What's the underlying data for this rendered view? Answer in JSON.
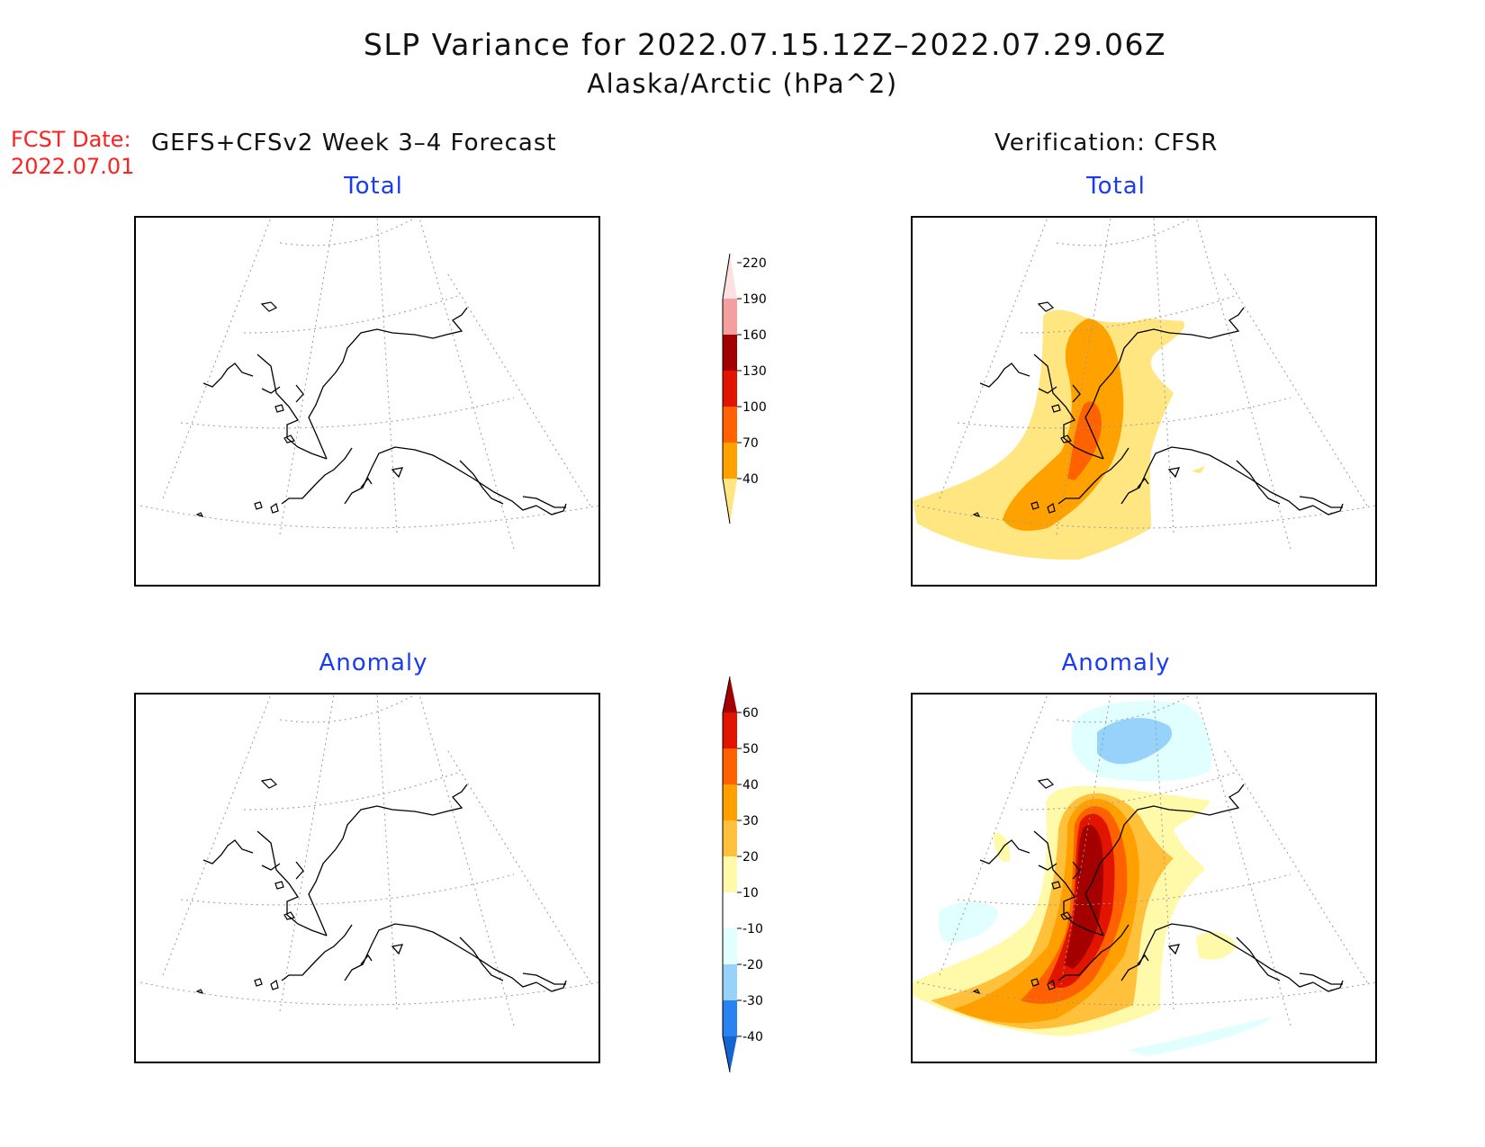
{
  "header": {
    "title_line1": "SLP Variance for 2022.07.15.12Z–2022.07.29.06Z",
    "title_line2": "Alaska/Arctic (hPa^2)",
    "fcst_label": "FCST Date:",
    "fcst_date": "2022.07.01",
    "left_header": "GEFS+CFSv2 Week 3–4 Forecast",
    "right_header": "Verification: CFSR"
  },
  "panels": {
    "top_left_title": "Total",
    "top_right_title": "Total",
    "bottom_left_title": "Anomaly",
    "bottom_right_title": "Anomaly"
  },
  "colorbars": {
    "total": {
      "levels": [
        "40",
        "70",
        "100",
        "130",
        "160",
        "190",
        "220"
      ],
      "colors": [
        "#ffe680",
        "#ffa200",
        "#ff6200",
        "#e01400",
        "#a00000",
        "#f5a0a0",
        "#fde0e0"
      ]
    },
    "anomaly": {
      "levels": [
        "-40",
        "-30",
        "-20",
        "-10",
        "10",
        "20",
        "30",
        "40",
        "50",
        "60"
      ],
      "colors": [
        "#1464d2",
        "#2882f0",
        "#96d2fa",
        "#e1ffff",
        "#ffffff",
        "#fffaaa",
        "#ffc03c",
        "#ffa000",
        "#ff6000",
        "#e11400",
        "#a50000"
      ]
    }
  }
}
